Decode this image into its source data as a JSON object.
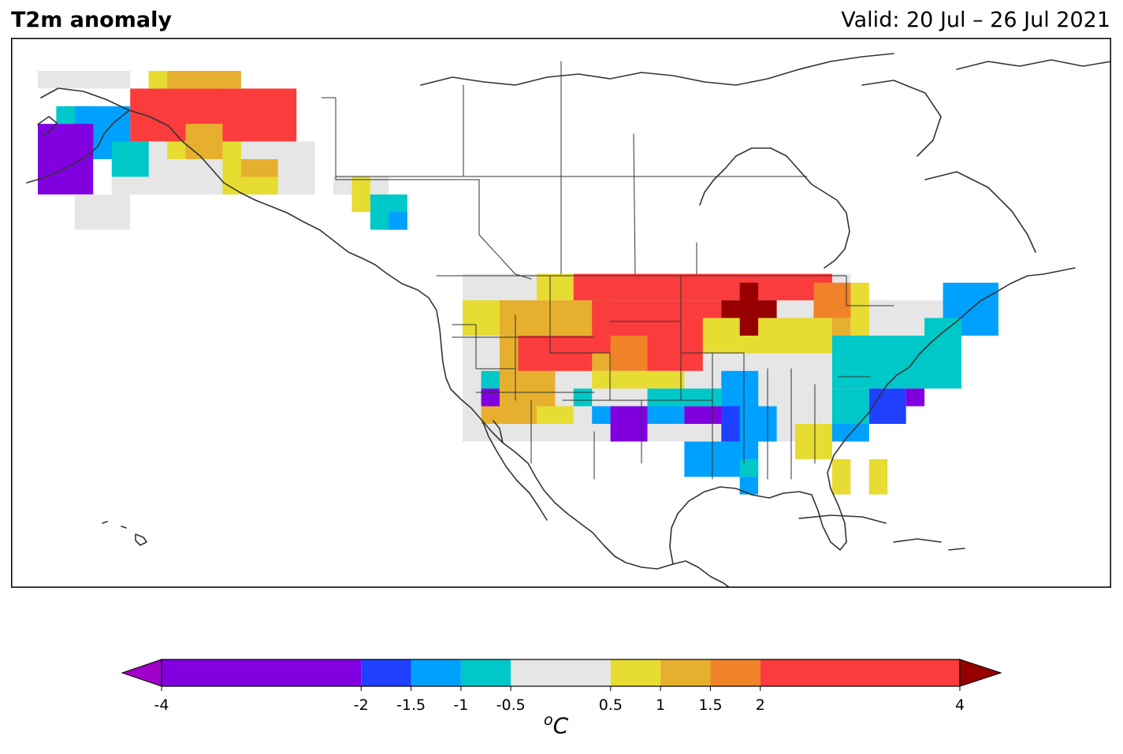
{
  "header": {
    "title": "T2m anomaly",
    "valid": "Valid: 20 Jul – 26 Jul 2021"
  },
  "colorbar": {
    "unit_sup": "o",
    "unit": "C",
    "bounds": [
      -4,
      -2,
      -1.5,
      -1,
      -0.5,
      0.5,
      1,
      1.5,
      2,
      4
    ],
    "tick_labels": [
      "-4",
      "-2",
      "-1.5",
      "-1",
      "-0.5",
      "0.5",
      "1",
      "1.5",
      "2",
      "4"
    ],
    "colors": [
      "#8000e0",
      "#2040ff",
      "#00a0ff",
      "#00c8c8",
      "#e6e6e6",
      "#e6dc32",
      "#e6af2d",
      "#f08228",
      "#fa3c3c"
    ],
    "under_color": "#a000c8",
    "over_color": "#960000"
  },
  "map": {
    "region": "North America",
    "coastline_color": "#333333",
    "grid_step_deg": 2,
    "anomaly_legend": {
      "vp": "below -2",
      "db": "-2 to -1.5",
      "lb": "-1.5 to -1",
      "cy": "-1 to -0.5",
      "gr": "-0.5 to 0.5",
      "ye": "0.5 to 1",
      "ao": "1 to 1.5",
      "or": "1.5 to 2",
      "re": "2 to 4",
      "dr": "above 4"
    },
    "anomaly_regions": [
      {
        "code": "re",
        "lon": [
          -160,
          -142
        ],
        "lat": [
          64,
          70
        ]
      },
      {
        "code": "ye",
        "lon": [
          -158,
          -150
        ],
        "lat": [
          70,
          72
        ]
      },
      {
        "code": "ao",
        "lon": [
          -156,
          -148
        ],
        "lat": [
          70,
          72
        ]
      },
      {
        "code": "gr",
        "lon": [
          -170,
          -160
        ],
        "lat": [
          70,
          72
        ]
      },
      {
        "code": "gr",
        "lon": [
          -162,
          -140
        ],
        "lat": [
          58,
          64
        ]
      },
      {
        "code": "cy",
        "lon": [
          -168,
          -164
        ],
        "lat": [
          66,
          68
        ]
      },
      {
        "code": "lb",
        "lon": [
          -166,
          -160
        ],
        "lat": [
          62,
          68
        ]
      },
      {
        "code": "vp",
        "lon": [
          -170,
          -164
        ],
        "lat": [
          58,
          66
        ]
      },
      {
        "code": "cy",
        "lon": [
          -162,
          -158
        ],
        "lat": [
          60,
          64
        ]
      },
      {
        "code": "ye",
        "lon": [
          -156,
          -148
        ],
        "lat": [
          62,
          64
        ]
      },
      {
        "code": "ao",
        "lon": [
          -154,
          -150
        ],
        "lat": [
          62,
          66
        ]
      },
      {
        "code": "ye",
        "lon": [
          -150,
          -144
        ],
        "lat": [
          58,
          62
        ]
      },
      {
        "code": "ao",
        "lon": [
          -148,
          -144
        ],
        "lat": [
          60,
          62
        ]
      },
      {
        "code": "gr",
        "lon": [
          -166,
          -160
        ],
        "lat": [
          54,
          58
        ]
      },
      {
        "code": "gr",
        "lon": [
          -138,
          -132
        ],
        "lat": [
          58,
          60
        ]
      },
      {
        "code": "ye",
        "lon": [
          -136,
          -134
        ],
        "lat": [
          56,
          60
        ]
      },
      {
        "code": "cy",
        "lon": [
          -134,
          -130
        ],
        "lat": [
          54,
          58
        ]
      },
      {
        "code": "lb",
        "lon": [
          -132,
          -130
        ],
        "lat": [
          54,
          56
        ]
      },
      {
        "code": "gr",
        "lon": [
          -124,
          -82
        ],
        "lat": [
          30,
          49
        ]
      },
      {
        "code": "gr",
        "lon": [
          -82,
          -70
        ],
        "lat": [
          38,
          46
        ]
      },
      {
        "code": "ye",
        "lon": [
          -124,
          -118
        ],
        "lat": [
          42,
          46
        ]
      },
      {
        "code": "ye",
        "lon": [
          -116,
          -112
        ],
        "lat": [
          46,
          49
        ]
      },
      {
        "code": "ao",
        "lon": [
          -120,
          -108
        ],
        "lat": [
          38,
          46
        ]
      },
      {
        "code": "re",
        "lon": [
          -112,
          -84
        ],
        "lat": [
          46,
          49
        ]
      },
      {
        "code": "re",
        "lon": [
          -110,
          -96
        ],
        "lat": [
          40,
          46
        ]
      },
      {
        "code": "re",
        "lon": [
          -118,
          -110
        ],
        "lat": [
          38,
          42
        ]
      },
      {
        "code": "or",
        "lon": [
          -108,
          -104
        ],
        "lat": [
          38,
          42
        ]
      },
      {
        "code": "re",
        "lon": [
          -104,
          -98
        ],
        "lat": [
          38,
          42
        ]
      },
      {
        "code": "ye",
        "lon": [
          -98,
          -84
        ],
        "lat": [
          40,
          44
        ]
      },
      {
        "code": "ao",
        "lon": [
          -84,
          -82
        ],
        "lat": [
          40,
          44
        ]
      },
      {
        "code": "ye",
        "lon": [
          -82,
          -80
        ],
        "lat": [
          42,
          48
        ]
      },
      {
        "code": "or",
        "lon": [
          -86,
          -82
        ],
        "lat": [
          44,
          48
        ]
      },
      {
        "code": "ao",
        "lon": [
          -122,
          -114
        ],
        "lat": [
          32,
          38
        ]
      },
      {
        "code": "ye",
        "lon": [
          -116,
          -112
        ],
        "lat": [
          32,
          34
        ]
      },
      {
        "code": "vp",
        "lon": [
          -122,
          -120
        ],
        "lat": [
          34,
          36
        ]
      },
      {
        "code": "cy",
        "lon": [
          -122,
          -120
        ],
        "lat": [
          36,
          38
        ]
      },
      {
        "code": "ye",
        "lon": [
          -110,
          -100
        ],
        "lat": [
          36,
          38
        ]
      },
      {
        "code": "cy",
        "lon": [
          -104,
          -96
        ],
        "lat": [
          34,
          36
        ]
      },
      {
        "code": "lb",
        "lon": [
          -96,
          -92
        ],
        "lat": [
          34,
          38
        ]
      },
      {
        "code": "lb",
        "lon": [
          -110,
          -100
        ],
        "lat": [
          32,
          34
        ]
      },
      {
        "code": "vp",
        "lon": [
          -108,
          -104
        ],
        "lat": [
          30,
          34
        ]
      },
      {
        "code": "vp",
        "lon": [
          -100,
          -94
        ],
        "lat": [
          32,
          34
        ]
      },
      {
        "code": "db",
        "lon": [
          -96,
          -92
        ],
        "lat": [
          30,
          34
        ]
      },
      {
        "code": "lb",
        "lon": [
          -94,
          -90
        ],
        "lat": [
          30,
          34
        ]
      },
      {
        "code": "cy",
        "lon": [
          -112,
          -110
        ],
        "lat": [
          34,
          36
        ]
      },
      {
        "code": "lb",
        "lon": [
          -100,
          -92
        ],
        "lat": [
          26,
          30
        ]
      },
      {
        "code": "cy",
        "lon": [
          -94,
          -92
        ],
        "lat": [
          26,
          28
        ]
      },
      {
        "code": "lb",
        "lon": [
          -94,
          -92
        ],
        "lat": [
          24,
          26
        ]
      },
      {
        "code": "ye",
        "lon": [
          -88,
          -84
        ],
        "lat": [
          28,
          32
        ]
      },
      {
        "code": "ye",
        "lon": [
          -80,
          -78
        ],
        "lat": [
          24,
          28
        ]
      },
      {
        "code": "cy",
        "lon": [
          -84,
          -70
        ],
        "lat": [
          36,
          42
        ]
      },
      {
        "code": "cy",
        "lon": [
          -84,
          -80
        ],
        "lat": [
          32,
          36
        ]
      },
      {
        "code": "lb",
        "lon": [
          -84,
          -80
        ],
        "lat": [
          30,
          32
        ]
      },
      {
        "code": "db",
        "lon": [
          -80,
          -76
        ],
        "lat": [
          32,
          36
        ]
      },
      {
        "code": "vp",
        "lon": [
          -76,
          -74
        ],
        "lat": [
          34,
          36
        ]
      },
      {
        "code": "lb",
        "lon": [
          -72,
          -66
        ],
        "lat": [
          42,
          48
        ]
      },
      {
        "code": "cy",
        "lon": [
          -74,
          -70
        ],
        "lat": [
          42,
          44
        ]
      },
      {
        "code": "ye",
        "lon": [
          -84,
          -82
        ],
        "lat": [
          24,
          28
        ]
      }
    ]
  }
}
